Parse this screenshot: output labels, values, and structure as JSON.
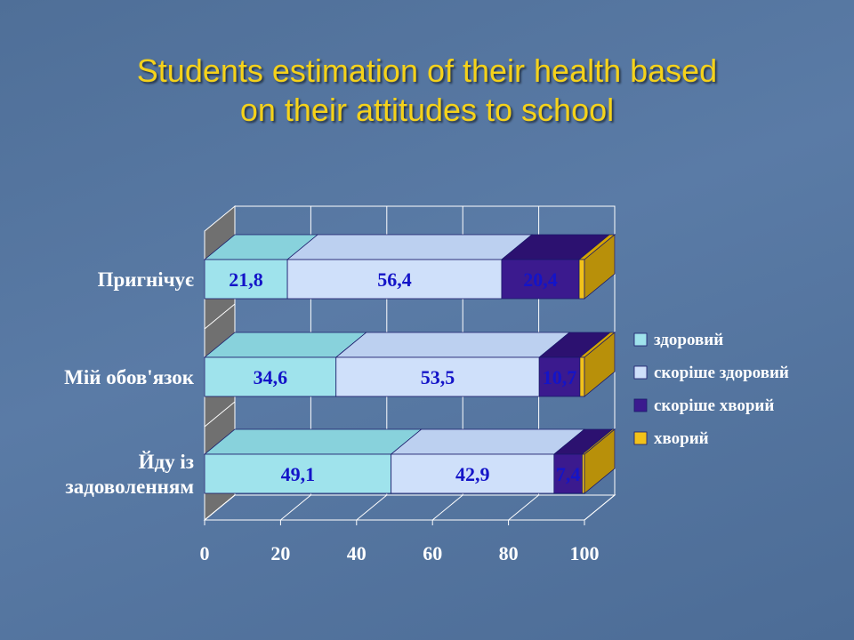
{
  "slide": {
    "title_line1": "Students estimation of their health based",
    "title_line2": "on their attitudes to school"
  },
  "colors": {
    "title": "#f5d21a",
    "series": [
      "#9fe3ec",
      "#cfe0fa",
      "#3b1a8e",
      "#f2c21a"
    ],
    "series_top": [
      "#88d2dc",
      "#bcd0f0",
      "#2c1170",
      "#d6a400"
    ],
    "label": "#1414c8"
  },
  "chart_data": {
    "type": "bar",
    "orientation": "horizontal",
    "stacked": true,
    "three_d": true,
    "categories": [
      "Пригнічує",
      "Мій обов'язок",
      "Йду із задоволенням"
    ],
    "category_lines": [
      [
        "Пригнічує"
      ],
      [
        "Мій обов'язок"
      ],
      [
        "Йду із",
        "задоволенням"
      ]
    ],
    "series": [
      {
        "name": "здоровий",
        "values": [
          21.8,
          34.6,
          49.1
        ],
        "labels": [
          "21,8",
          "34,6",
          "49,1"
        ]
      },
      {
        "name": "скоріше здоровий",
        "values": [
          56.4,
          53.5,
          42.9
        ],
        "labels": [
          "56,4",
          "53,5",
          "42,9"
        ]
      },
      {
        "name": "скоріше хворий",
        "values": [
          20.4,
          10.7,
          7.4
        ],
        "labels": [
          "20,4",
          "10,7",
          "7,4"
        ]
      },
      {
        "name": "хворий",
        "values": [
          1.4,
          1.2,
          0.6
        ],
        "labels": []
      }
    ],
    "xlim": [
      0,
      100
    ],
    "xticks": [
      0,
      20,
      40,
      60,
      80,
      100
    ],
    "grid": true,
    "legend_position": "right"
  }
}
